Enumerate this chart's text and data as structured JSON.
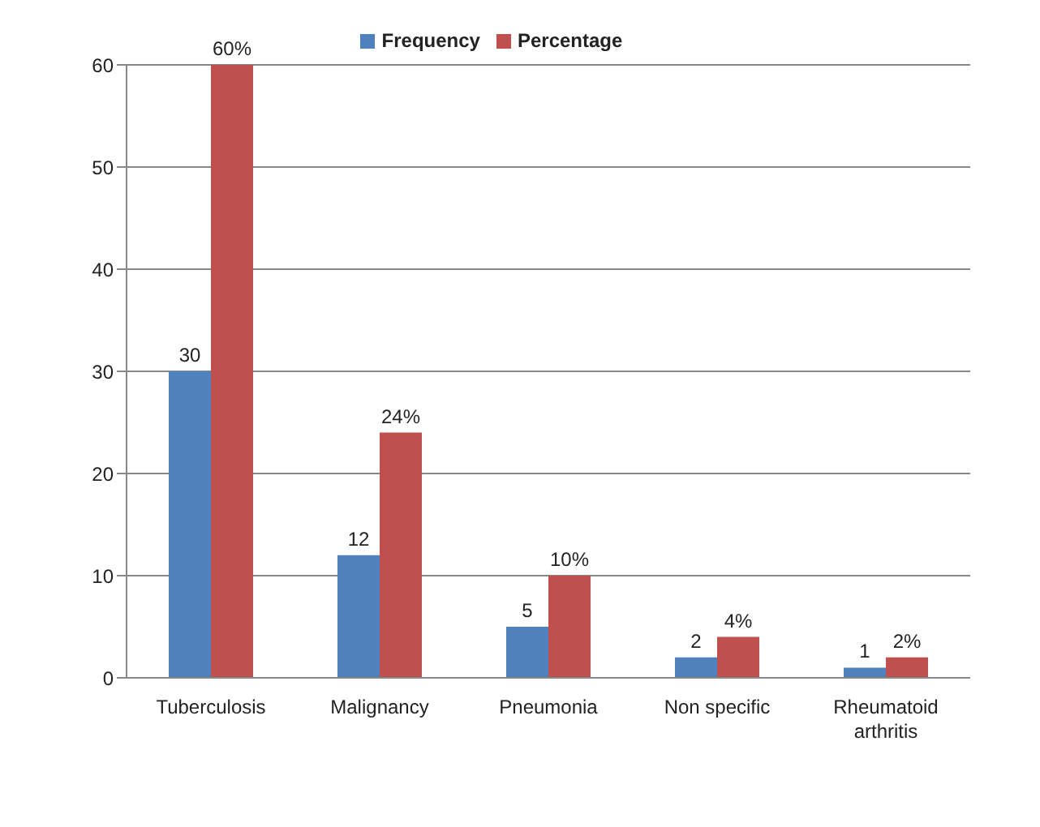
{
  "chart_data": {
    "type": "bar",
    "categories": [
      "Tuberculosis",
      "Malignancy",
      "Pneumonia",
      "Non specific",
      "Rheumatoid arthritis"
    ],
    "series": [
      {
        "name": "Frequency",
        "color": "#4f81bd",
        "values": [
          30,
          12,
          5,
          2,
          1
        ],
        "value_labels": [
          "30",
          "12",
          "5",
          "2",
          "1"
        ]
      },
      {
        "name": "Percentage",
        "color": "#c0504d",
        "values": [
          60,
          24,
          10,
          4,
          2
        ],
        "value_labels": [
          "60%",
          "24%",
          "10%",
          "4%",
          "2%"
        ]
      }
    ],
    "ylim": [
      0,
      60
    ],
    "yticks": [
      0,
      10,
      20,
      30,
      40,
      50,
      60
    ],
    "grid": "y",
    "legend": "top"
  }
}
